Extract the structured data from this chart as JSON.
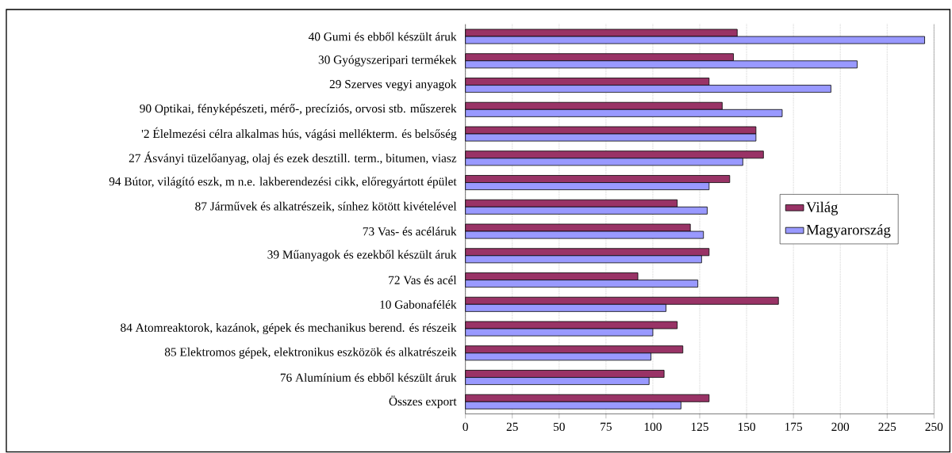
{
  "chart_data": {
    "type": "bar",
    "orientation": "horizontal",
    "categories": [
      "40  Gumi és ebből készült áruk",
      "30  Gyógyszeripari termékek",
      "29  Szerves vegyi anyagok",
      "90  Optikai, fényképészeti, mérő-, precíziós, orvosi stb. műszerek",
      "'2  Élelmezési célra alkalmas hús, vágási mellékterm. és belsőség",
      "27  Ásványi tüzelőanyag, olaj és ezek desztill. term., bitumen, viasz",
      "94  Bútor, világító eszk, m n.e. lakberendezési cikk, előregyártott épület",
      "87  Járművek és alkatrészeik, sínhez kötött kivételével",
      "73  Vas- és acéláruk",
      "39  Műanyagok és ezekből készült áruk",
      "72  Vas és acél",
      "10  Gabonafélék",
      "84  Atomreaktorok, kazánok, gépek és mechanikus berend. és részeik",
      "85  Elektromos gépek, elektronikus eszközök és alkatrészeik",
      "76  Alumínium és ebből készült áruk",
      "Összes export"
    ],
    "series": [
      {
        "name": "Világ",
        "color": "#993366",
        "values": [
          145,
          143,
          130,
          137,
          155,
          159,
          141,
          113,
          120,
          130,
          92,
          167,
          113,
          116,
          106,
          130
        ]
      },
      {
        "name": "Magyarország",
        "color": "#9999ff",
        "values": [
          245,
          209,
          195,
          169,
          155,
          148,
          130,
          129,
          127,
          126,
          124,
          107,
          100,
          99,
          98,
          115
        ]
      }
    ],
    "xlim": [
      0,
      250
    ],
    "xticks": [
      0,
      25,
      50,
      75,
      100,
      125,
      150,
      175,
      200,
      225,
      250
    ],
    "grid": "x",
    "legend": "right"
  }
}
